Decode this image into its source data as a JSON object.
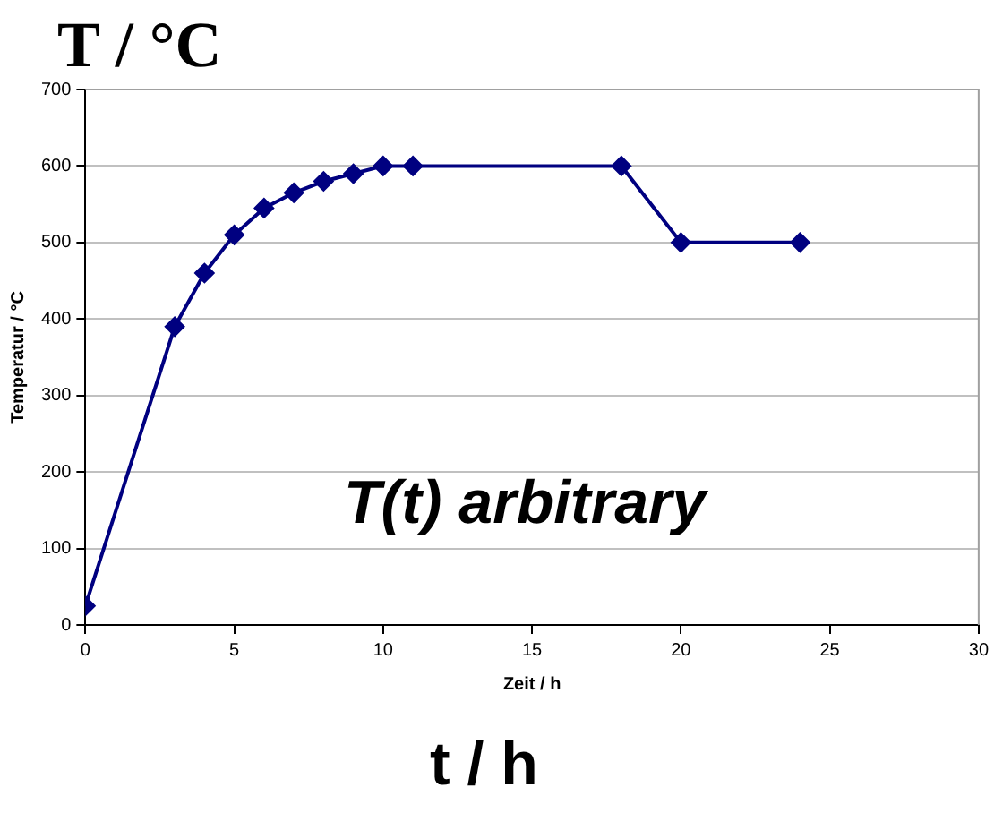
{
  "chart_data": {
    "type": "line",
    "title": "T / °C",
    "xlabel": "Zeit / h",
    "ylabel": "Temperatur / °C",
    "annotations": [
      "t / h",
      "T(t) arbitrary"
    ],
    "x": [
      0,
      3,
      4,
      5,
      6,
      7,
      8,
      9,
      10,
      11,
      18,
      20,
      24
    ],
    "series": [
      {
        "color": "#000080",
        "values": [
          25,
          390,
          460,
          510,
          545,
          565,
          580,
          590,
          600,
          600,
          600,
          500,
          500
        ]
      }
    ],
    "xlim": [
      0,
      30
    ],
    "xticks": [
      0,
      5,
      10,
      15,
      20,
      25,
      30
    ],
    "ylim": [
      0,
      700
    ],
    "yticks": [
      0,
      100,
      200,
      300,
      400,
      500,
      600,
      700
    ],
    "grid": "y",
    "legend": false,
    "marker": "diamond",
    "line_style": "solid"
  }
}
